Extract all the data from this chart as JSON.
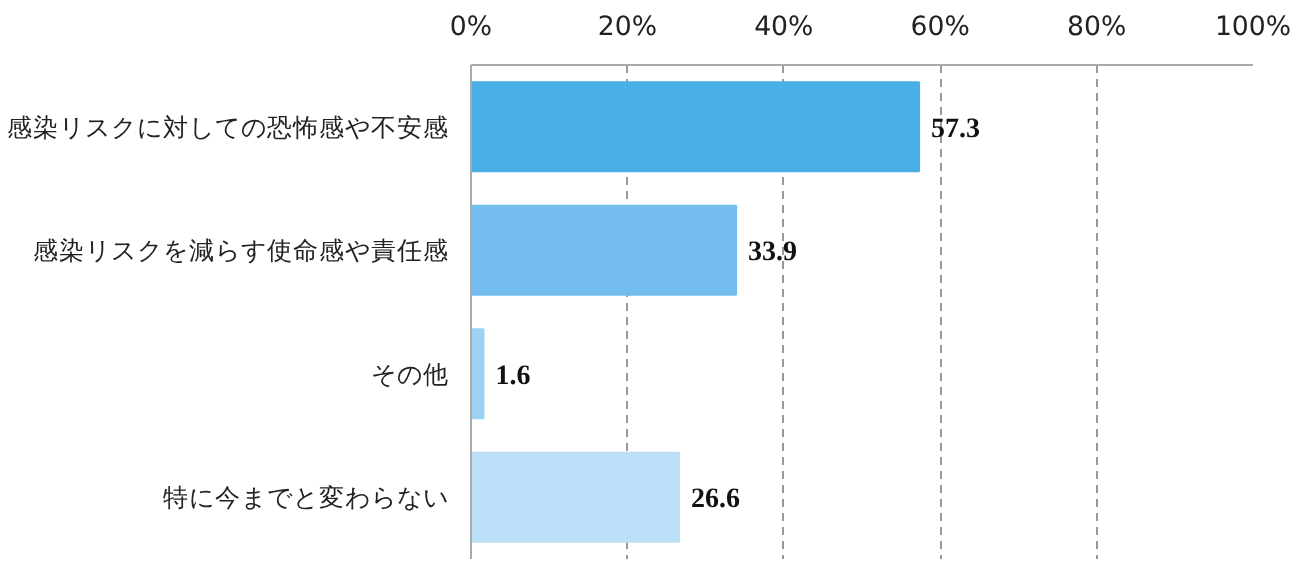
{
  "chart_data": {
    "type": "bar",
    "orientation": "horizontal",
    "categories": [
      "感染リスクに対しての恐怖感や不安感",
      "感染リスクを減らす使命感や責任感",
      "その他",
      "特に今までと変わらない"
    ],
    "values": [
      57.3,
      33.9,
      1.6,
      26.6
    ],
    "colors": [
      "#4aaee8",
      "#72bdee",
      "#9dd2f4",
      "#bbdff6"
    ],
    "xlim": [
      0,
      100
    ],
    "xticks": [
      {
        "value": 0,
        "label": "0%"
      },
      {
        "value": 20,
        "label": "20%"
      },
      {
        "value": 40,
        "label": "40%"
      },
      {
        "value": 60,
        "label": "60%"
      },
      {
        "value": 80,
        "label": "80%"
      },
      {
        "value": 100,
        "label": "100%"
      }
    ],
    "grid": "x",
    "data_labels": true
  }
}
